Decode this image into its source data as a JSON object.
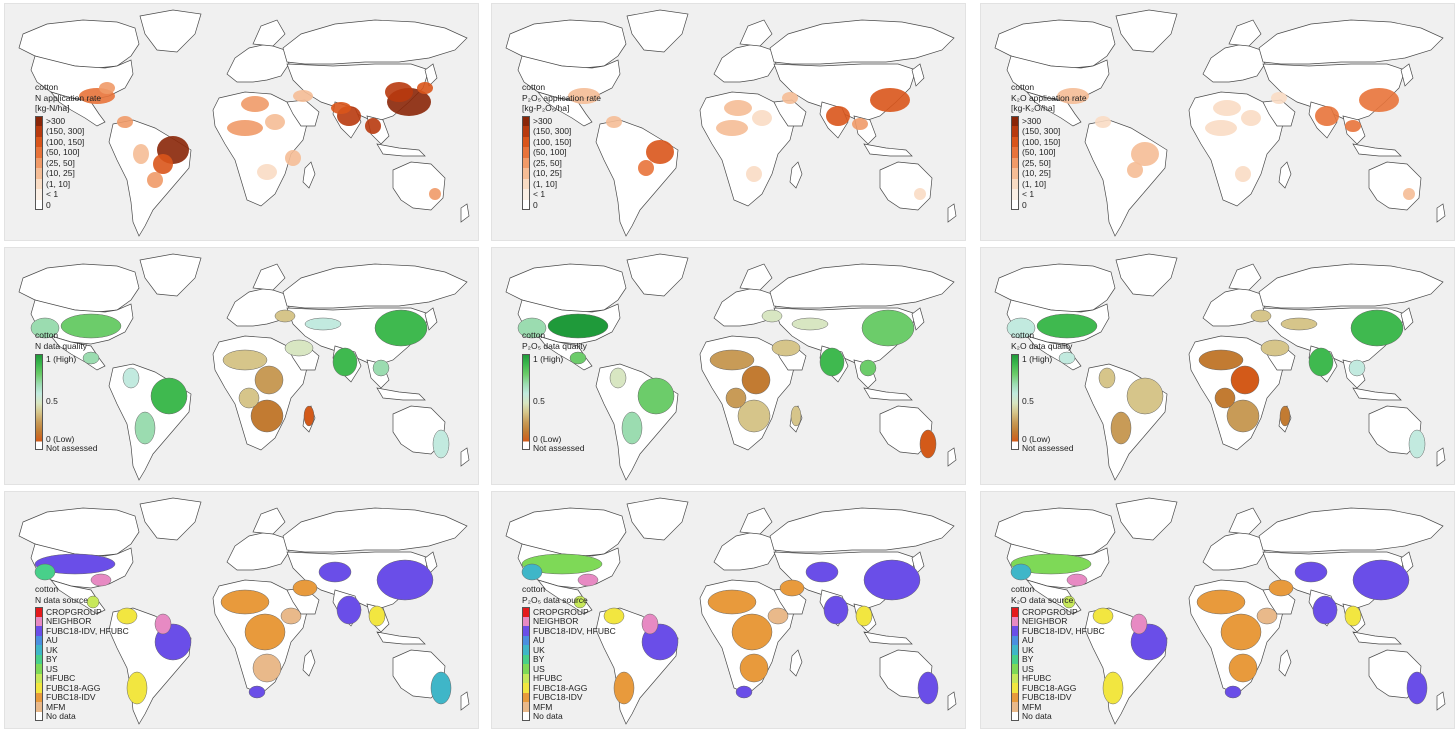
{
  "columns": [
    {
      "nutrient": "N",
      "rate_title": [
        "cotton",
        "N application rate",
        "[kg-N/ha]"
      ],
      "quality_title": [
        "cotton",
        "N data quality"
      ],
      "source_title": [
        "cotton",
        "N data source"
      ]
    },
    {
      "nutrient": "P2O5",
      "rate_title": [
        "cotton",
        "P₂O₅ application rate",
        "[kg-P₂O₅/ha]"
      ],
      "quality_title": [
        "cotton",
        "P₂O₅ data quality"
      ],
      "source_title": [
        "cotton",
        "P₂O₅ data source"
      ]
    },
    {
      "nutrient": "K2O",
      "rate_title": [
        "cotton",
        "K₂O application rate",
        "[kg-K₂O/ha]"
      ],
      "quality_title": [
        "cotton",
        "K₂O data quality"
      ],
      "source_title": [
        "cotton",
        "K₂O data source"
      ]
    }
  ],
  "rate_legend": {
    "labels": [
      ">300",
      "(150, 300]",
      "(100, 150]",
      "(50, 100]",
      "(25, 50]",
      "(10, 25]",
      "(1, 10]",
      "< 1",
      "0"
    ],
    "colors": [
      "#8a2608",
      "#b83a0e",
      "#d9551b",
      "#e8733a",
      "#f09a68",
      "#f5bd96",
      "#f9dcc4",
      "#fbefe4",
      "#ffffff"
    ]
  },
  "quality_legend": {
    "high": "1 (High)",
    "mid": "0.5",
    "low": "0 (Low)",
    "none": "Not assessed"
  },
  "source_legend": {
    "labels": [
      "CROPGROUP",
      "NEIGHBOR",
      "FUBC18-IDV, HFUBC",
      "AU",
      "UK",
      "BY",
      "US",
      "HFUBC",
      "FUBC18-AGG",
      "FUBC18-IDV",
      "MFM",
      "No data"
    ],
    "colors": [
      "#e41a1c",
      "#e78ac3",
      "#6a4ee8",
      "#4a8fe0",
      "#3fb6c8",
      "#48d08a",
      "#7ed957",
      "#c7e85a",
      "#f2e640",
      "#e89a3c",
      "#e9b98a",
      "#ffffff"
    ]
  },
  "colors": {
    "panel_bg": "#f0f0f0",
    "land": "#ffffff",
    "outline": "#4a4a4a"
  }
}
